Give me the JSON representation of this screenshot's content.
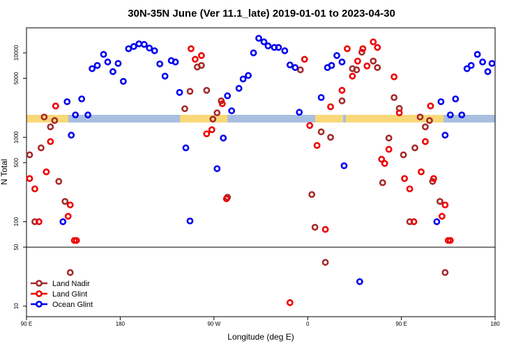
{
  "chart_data": {
    "type": "scatter",
    "title": "30N-35N June (Ver 11.1_late)   2019-01-01 to 2023-04-30",
    "x_label": "Longitude (deg E)",
    "y_label": "N Total",
    "xlim": [
      90,
      540
    ],
    "xticks": [
      {
        "value": 90,
        "label": "90 E"
      },
      {
        "value": 180,
        "label": "180"
      },
      {
        "value": 270,
        "label": "90 W"
      },
      {
        "value": 360,
        "label": "0"
      },
      {
        "value": 450,
        "label": "90 E"
      },
      {
        "value": 540,
        "label": "180"
      }
    ],
    "ylim": [
      7.5,
      19800
    ],
    "yticks": [
      10,
      50,
      100,
      500,
      1000,
      5000,
      10000
    ],
    "log_y": true,
    "hline": 50,
    "legend": "bottom-left",
    "series": [
      {
        "name": "Land Nadir",
        "color": "#a52a2a",
        "x": [
          93,
          98,
          104,
          107,
          113,
          117,
          121,
          127,
          132,
          242,
          247,
          254,
          258,
          263,
          269,
          273,
          277,
          283,
          353,
          364,
          367,
          373,
          377,
          382,
          393,
          403,
          407,
          412,
          423,
          427,
          432,
          438,
          443,
          448,
          452,
          458,
          463,
          468,
          473,
          477,
          480,
          487,
          492
        ],
        "values": [
          620,
          100,
          750,
          1740,
          1330,
          1580,
          300,
          174,
          25,
          2180,
          3500,
          6800,
          7100,
          3600,
          1640,
          1950,
          2700,
          195,
          6300,
          210,
          86,
          1160,
          33,
          1000,
          2700,
          6500,
          6300,
          10200,
          8000,
          6700,
          290,
          980,
          2960,
          2200,
          620,
          100,
          750,
          1740,
          1330,
          1580,
          300,
          174,
          25
        ]
      },
      {
        "name": "Land Glint",
        "color": "#ee0000",
        "x": [
          93,
          98,
          102,
          109,
          113,
          118,
          130,
          132,
          136,
          138,
          248,
          252,
          258,
          263,
          268,
          278,
          282,
          343,
          357,
          362,
          369,
          377,
          382,
          393,
          398,
          403,
          408,
          413,
          417,
          423,
          427,
          431,
          434,
          438,
          443,
          448,
          453,
          458,
          462,
          469,
          473,
          478,
          481,
          489,
          492,
          495,
          497
        ],
        "values": [
          325,
          245,
          100,
          390,
          890,
          2350,
          116,
          158,
          60,
          60,
          11200,
          8400,
          9300,
          1100,
          1230,
          2500,
          187,
          11,
          8400,
          1380,
          800,
          81,
          2300,
          3600,
          11200,
          5300,
          8000,
          11200,
          7000,
          13500,
          11600,
          550,
          490,
          720,
          5200,
          1950,
          325,
          245,
          100,
          390,
          890,
          2350,
          325,
          116,
          158,
          60,
          60
        ]
      },
      {
        "name": "Ocean Glint",
        "color": "#0000ee",
        "x": [
          125,
          129,
          133,
          137,
          143,
          149,
          153,
          158,
          164,
          168,
          173,
          178,
          183,
          188,
          193,
          198,
          203,
          208,
          213,
          218,
          223,
          229,
          233,
          237,
          243,
          247,
          273,
          279,
          283,
          287,
          294,
          298,
          303,
          308,
          313,
          318,
          322,
          328,
          332,
          338,
          343,
          348,
          352,
          373,
          379,
          383,
          388,
          393,
          395,
          410,
          484,
          488,
          492,
          497,
          502,
          508,
          513,
          517,
          523,
          528,
          533,
          537
        ],
        "values": [
          100,
          2640,
          1060,
          1840,
          2850,
          1840,
          6500,
          7100,
          9600,
          7800,
          6000,
          7500,
          4600,
          11200,
          11900,
          12800,
          12600,
          11400,
          10600,
          7400,
          5300,
          8100,
          7800,
          3400,
          750,
          102,
          425,
          980,
          3100,
          2060,
          3800,
          4900,
          5400,
          10000,
          14900,
          13500,
          12100,
          11600,
          11600,
          10600,
          7200,
          6700,
          1980,
          2960,
          6700,
          7100,
          9300,
          7800,
          460,
          19.5,
          100,
          2640,
          1060,
          1840,
          2850,
          1840,
          6500,
          7100,
          9600,
          7800,
          6000,
          7500
        ]
      }
    ]
  }
}
